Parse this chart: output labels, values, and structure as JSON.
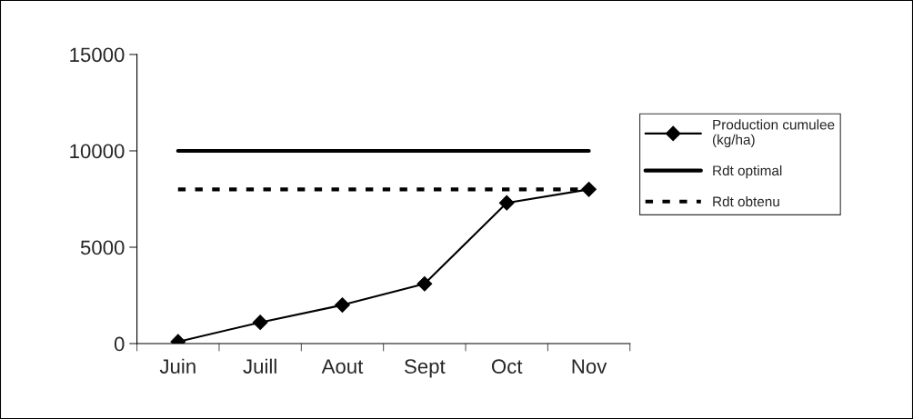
{
  "chart_data": {
    "type": "line",
    "categories": [
      "Juin",
      "Juill",
      "Aout",
      "Sept",
      "Oct",
      "Nov"
    ],
    "series": [
      {
        "name": "Production cumulee\n(kg/ha)",
        "color": "#000000",
        "values": [
          100,
          1100,
          2000,
          3100,
          7300,
          8000
        ],
        "marker": "diamond",
        "line_style": "solid"
      },
      {
        "name": "Rdt optimal",
        "color": "#000000",
        "values": [
          10000,
          10000,
          10000,
          10000,
          10000,
          10000
        ],
        "marker": "none",
        "line_style": "solid"
      },
      {
        "name": "Rdt obtenu",
        "color": "#000000",
        "values": [
          8000,
          8000,
          8000,
          8000,
          8000,
          8000
        ],
        "marker": "none",
        "line_style": "dashed"
      }
    ],
    "ylim": [
      0,
      15000
    ],
    "yticks": [
      0,
      5000,
      10000,
      15000
    ],
    "grid": false,
    "legend": "right"
  }
}
